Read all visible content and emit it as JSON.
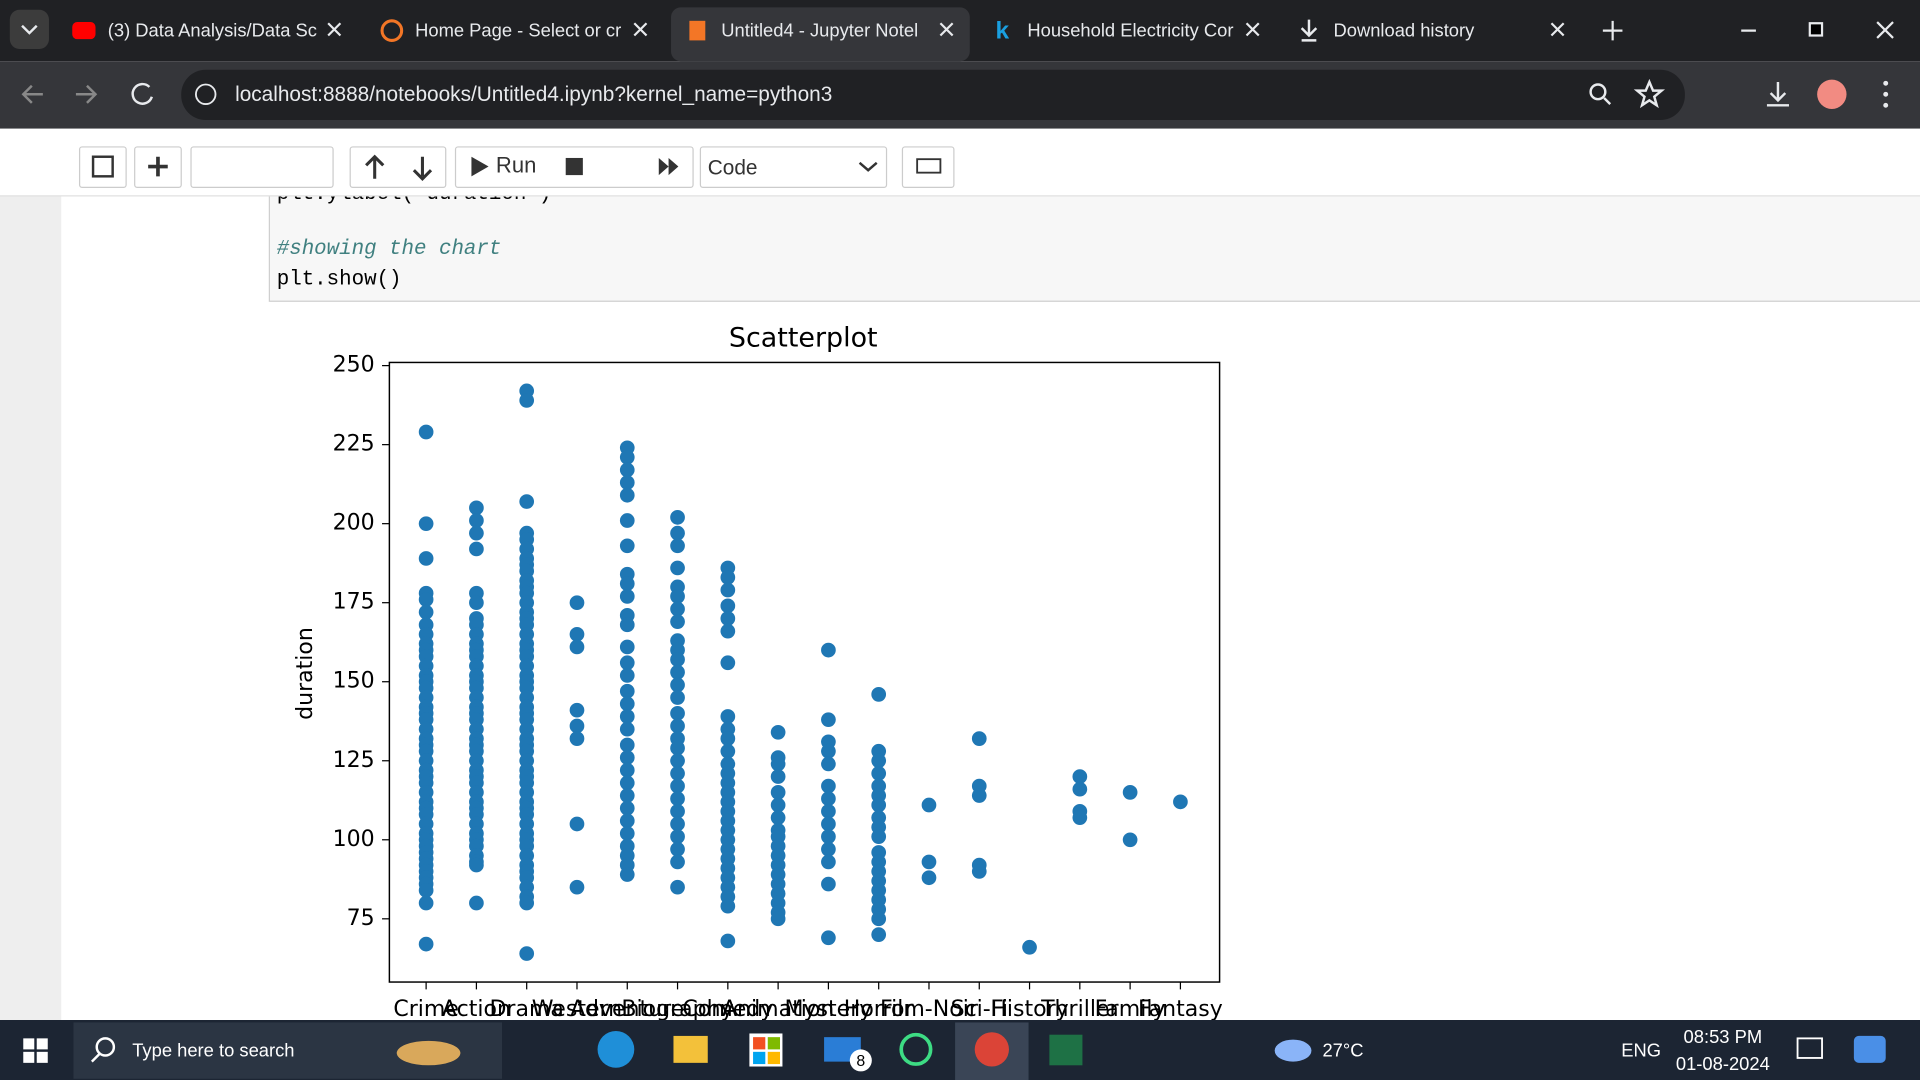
{
  "browser": {
    "tabs": [
      "(3) Data Analysis/Data Sc",
      "Home Page - Select or cr",
      "Untitled4 - Jupyter Notel",
      "Household Electricity Cor",
      "Download history"
    ],
    "url": "localhost:8888/notebooks/Untitled4.ipynb?kernel_name=python3"
  },
  "toolbar": {
    "run": "Run",
    "cell_type": "Code"
  },
  "code": {
    "lines": [
      "plt.ylabel('duration')",
      "#showing the chart",
      "plt.show()"
    ]
  },
  "chart": {
    "type": "scatter",
    "title": "Scatterplot",
    "y_label": "duration",
    "color": "#1f77b4",
    "categories": [
      "Crime",
      "Action",
      "Drama",
      "Western",
      "Adventure",
      "Biography",
      "Comedy",
      "Animation",
      "Mystery",
      "Horror",
      "Film-Noir",
      "Sci-Fi",
      "History",
      "Thriller",
      "Family",
      "Fantasy"
    ],
    "values": [
      [
        229,
        200,
        189,
        178,
        176,
        172,
        168,
        165,
        162,
        160,
        158,
        155,
        152,
        150,
        148,
        145,
        142,
        140,
        138,
        135,
        132,
        130,
        128,
        125,
        122,
        120,
        118,
        115,
        112,
        110,
        108,
        105,
        102,
        100,
        98,
        96,
        94,
        92,
        90,
        88,
        86,
        84,
        80,
        67
      ],
      [
        205,
        201,
        197,
        192,
        178,
        175,
        170,
        168,
        165,
        162,
        160,
        158,
        155,
        152,
        150,
        148,
        145,
        142,
        140,
        138,
        135,
        132,
        130,
        128,
        125,
        122,
        120,
        118,
        115,
        112,
        110,
        108,
        105,
        102,
        100,
        98,
        95,
        93,
        92,
        80
      ],
      [
        242,
        239,
        207,
        197,
        195,
        192,
        189,
        187,
        185,
        182,
        180,
        178,
        175,
        172,
        170,
        168,
        165,
        162,
        160,
        158,
        155,
        152,
        150,
        148,
        145,
        142,
        140,
        138,
        135,
        132,
        130,
        128,
        125,
        122,
        120,
        118,
        115,
        112,
        110,
        108,
        105,
        102,
        100,
        98,
        95,
        92,
        90,
        88,
        85,
        82,
        80,
        64
      ],
      [
        175,
        165,
        161,
        141,
        136,
        132,
        105,
        85
      ],
      [
        224,
        221,
        217,
        213,
        209,
        201,
        193,
        184,
        181,
        177,
        171,
        168,
        161,
        156,
        152,
        147,
        143,
        139,
        135,
        130,
        126,
        122,
        118,
        114,
        110,
        106,
        102,
        98,
        95,
        92,
        89
      ],
      [
        202,
        197,
        193,
        186,
        180,
        177,
        173,
        169,
        163,
        160,
        157,
        153,
        149,
        145,
        140,
        136,
        132,
        129,
        125,
        121,
        117,
        113,
        109,
        105,
        101,
        97,
        93,
        85
      ],
      [
        186,
        183,
        179,
        174,
        170,
        166,
        156,
        139,
        135,
        132,
        128,
        124,
        121,
        118,
        115,
        112,
        109,
        106,
        103,
        100,
        97,
        94,
        91,
        88,
        85,
        82,
        79,
        68
      ],
      [
        134,
        126,
        124,
        120,
        115,
        111,
        107,
        103,
        101,
        98,
        95,
        92,
        89,
        86,
        83,
        80,
        77,
        75
      ],
      [
        160,
        138,
        131,
        128,
        124,
        117,
        113,
        109,
        105,
        101,
        97,
        93,
        86,
        69
      ],
      [
        146,
        128,
        125,
        121,
        117,
        114,
        111,
        107,
        104,
        101,
        96,
        93,
        90,
        87,
        84,
        81,
        78,
        75,
        70
      ],
      [
        111,
        93,
        88
      ],
      [
        132,
        117,
        114,
        92,
        90
      ],
      [
        66
      ],
      [
        120,
        116,
        109,
        107
      ],
      [
        115,
        100
      ],
      [
        112
      ]
    ],
    "ylim": [
      55,
      251
    ],
    "yticks": [
      75,
      100,
      125,
      150,
      175,
      200,
      225,
      250
    ]
  },
  "taskbar": {
    "search": "Type here to search",
    "mail_badge": "8",
    "weather": "27°C",
    "language": "ENG",
    "time": "08:53 PM",
    "date": "01-08-2024"
  }
}
